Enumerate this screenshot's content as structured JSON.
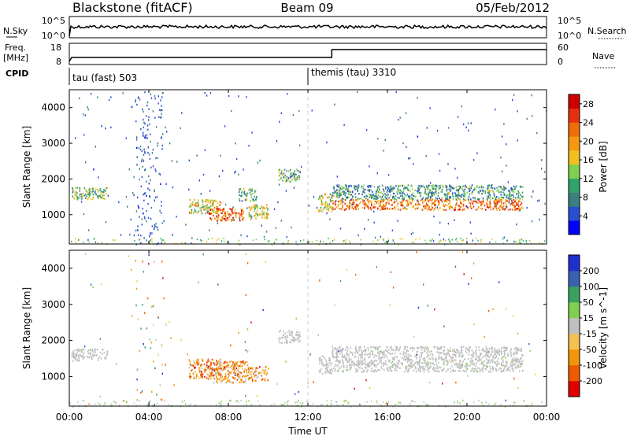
{
  "header": {
    "station": "Blackstone (fitACF)",
    "beam": "Beam 09",
    "date": "05/Feb/2012"
  },
  "noise_panel": {
    "left_label": "N.Sky",
    "left_ticks": [
      "10^5",
      "10^0"
    ],
    "right_label": "N.Search",
    "right_ticks": [
      "10^5",
      "10^0"
    ]
  },
  "freq_panel": {
    "left_label_1": "Freq.",
    "left_label_2": "[MHz]",
    "left_ticks": [
      "18",
      "8"
    ],
    "right_label": "Nave",
    "right_ticks": [
      "60",
      "0"
    ],
    "step_hour": 13.2
  },
  "cpid_panel": {
    "label": "CPID",
    "mode_1": "tau (fast) 503",
    "mode_2": "themis (tau) 3310",
    "mode_2_start_hour": 12.0
  },
  "chart_data": [
    {
      "type": "heatmap",
      "quantity": "Power",
      "colorbar_label": "Power [dB]",
      "colorbar_ticks": [
        "28",
        "24",
        "20",
        "16",
        "12",
        "8",
        "4"
      ],
      "colorbar_range": [
        0,
        30
      ],
      "colors": [
        "#0000ff",
        "#2a4ed0",
        "#3c7f80",
        "#2fa36a",
        "#7fcf50",
        "#f0c020",
        "#f59a10",
        "#f06e0a",
        "#e83010",
        "#d00000"
      ],
      "ylabel": "Slant Range [km]",
      "y_ticks": [
        "4000",
        "3000",
        "2000",
        "1000"
      ],
      "ylim": [
        180,
        4500
      ],
      "xlim": [
        0,
        24
      ],
      "regions": [
        {
          "t0": 0.1,
          "t1": 1.9,
          "r0": 1450,
          "r1": 1780,
          "level": 0.4
        },
        {
          "t0": 6.0,
          "t1": 7.6,
          "r0": 1050,
          "r1": 1450,
          "level": 0.55
        },
        {
          "t0": 7.0,
          "t1": 8.8,
          "r0": 850,
          "r1": 1200,
          "level": 0.8
        },
        {
          "t0": 8.5,
          "t1": 9.4,
          "r0": 1400,
          "r1": 1750,
          "level": 0.35
        },
        {
          "t0": 9.0,
          "t1": 10.0,
          "r0": 900,
          "r1": 1300,
          "level": 0.55
        },
        {
          "t0": 10.5,
          "t1": 11.6,
          "r0": 1950,
          "r1": 2300,
          "level": 0.35
        },
        {
          "t0": 12.5,
          "t1": 13.2,
          "r0": 1100,
          "r1": 1600,
          "level": 0.5
        },
        {
          "t0": 13.2,
          "t1": 22.8,
          "r0": 1150,
          "r1": 1450,
          "level": 0.75
        },
        {
          "t0": 13.2,
          "t1": 22.8,
          "r0": 1450,
          "r1": 1850,
          "level": 0.3
        }
      ]
    },
    {
      "type": "heatmap",
      "quantity": "Velocity",
      "colorbar_label": "Velocity [m s^-1]",
      "colorbar_ticks": [
        "200",
        "100",
        "50",
        "15",
        "-15",
        "-50",
        "-100",
        "-200"
      ],
      "colors": [
        "#e00000",
        "#ee5a00",
        "#f2950a",
        "#f5c050",
        "#c0c0c0",
        "#7fd050",
        "#3aa060",
        "#3a60b0",
        "#2030d0"
      ],
      "ylabel": "Slant Range [km]",
      "y_ticks": [
        "4000",
        "3000",
        "2000",
        "1000"
      ],
      "ylim": [
        180,
        4500
      ],
      "xlim": [
        0,
        24
      ],
      "regions": [
        {
          "t0": 0.1,
          "t1": 1.9,
          "r0": 1450,
          "r1": 1780,
          "level": 0.5
        },
        {
          "t0": 6.0,
          "t1": 7.6,
          "r0": 950,
          "r1": 1500,
          "level": 0.25
        },
        {
          "t0": 7.0,
          "t1": 9.0,
          "r0": 850,
          "r1": 1450,
          "level": 0.28
        },
        {
          "t0": 9.0,
          "t1": 10.0,
          "r0": 900,
          "r1": 1300,
          "level": 0.28
        },
        {
          "t0": 10.5,
          "t1": 11.6,
          "r0": 1950,
          "r1": 2300,
          "level": 0.5
        },
        {
          "t0": 12.5,
          "t1": 13.2,
          "r0": 1100,
          "r1": 1600,
          "level": 0.5
        },
        {
          "t0": 13.2,
          "t1": 22.8,
          "r0": 1150,
          "r1": 1850,
          "level": 0.5
        }
      ]
    }
  ],
  "x_axis": {
    "ticks": [
      "00:00",
      "04:00",
      "08:00",
      "12:00",
      "16:00",
      "20:00",
      "00:00"
    ],
    "label": "Time UT"
  }
}
